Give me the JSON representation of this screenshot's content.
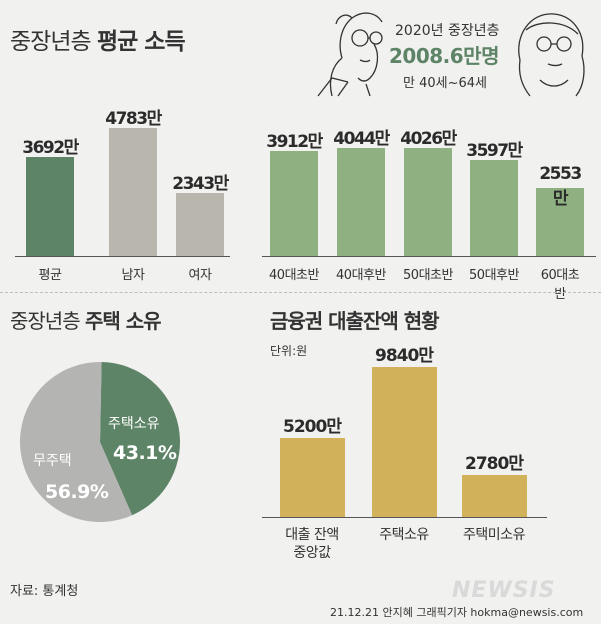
{
  "header": {
    "title_part1": "중장년층",
    "title_part2": "평균 소득",
    "callout_line1": "2020년 중장년층",
    "callout_line2": "2008.6만명",
    "callout_line3": "만 40세~64세"
  },
  "colors": {
    "dark_green": "#5d8466",
    "light_green": "#8fb181",
    "gray": "#b8b6ad",
    "gold": "#d1b25a",
    "pie_gray": "#b4b4b2",
    "background": "#f1f1ef"
  },
  "chart_data": [
    {
      "type": "bar",
      "title": "중장년층 평균 소득",
      "categories": [
        "평균",
        "남자",
        "여자",
        "40대초반",
        "40대후반",
        "50대초반",
        "50대후반",
        "60대초반"
      ],
      "values": [
        3692,
        4783,
        2343,
        3912,
        4044,
        4026,
        3597,
        2553
      ],
      "value_labels": [
        "3692만",
        "4783만",
        "2343만",
        "3912만",
        "4044만",
        "4026만",
        "3597만",
        "2553만"
      ],
      "unit": "만원"
    },
    {
      "type": "pie",
      "title": "중장년층 주택 소유",
      "slices": [
        {
          "label": "주택소유",
          "value": 43.1,
          "value_label": "43.1%",
          "color": "#5d8466"
        },
        {
          "label": "무주택",
          "value": 56.9,
          "value_label": "56.9%",
          "color": "#b4b4b2"
        }
      ]
    },
    {
      "type": "bar",
      "title": "금융권 대출잔액 현황",
      "unit_label": "단위:원",
      "categories": [
        "대출 잔액 중앙값",
        "주택소유",
        "주택미소유"
      ],
      "category_lines": [
        [
          "대출 잔액",
          "중앙값"
        ],
        [
          "주택소유"
        ],
        [
          "주택미소유"
        ]
      ],
      "values": [
        5200,
        9840,
        2780
      ],
      "value_labels": [
        "5200만",
        "9840만",
        "2780만"
      ]
    }
  ],
  "section2": {
    "title_part1": "중장년층",
    "title_part2": "주택 소유"
  },
  "section3": {
    "title": "금융권 대출잔액 현황",
    "unit": "단위:원"
  },
  "footer": {
    "source": "자료: 통계청",
    "logo": "NEWSIS",
    "credit": "21.12.21 안지혜 그래픽기자 hokma@newsis.com"
  }
}
